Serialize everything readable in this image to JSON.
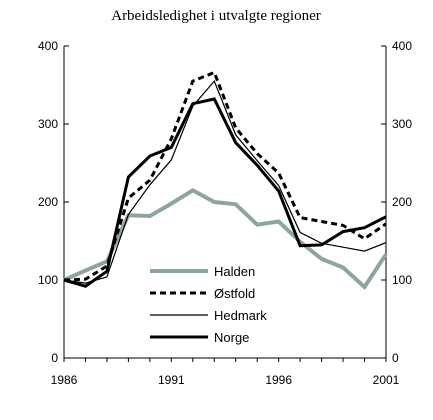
{
  "chart_data": {
    "type": "line",
    "title": "Arbeidsledighet i utvalgte regioner",
    "xlabel": "",
    "ylabel": "",
    "x": [
      1986,
      1987,
      1988,
      1989,
      1990,
      1991,
      1992,
      1993,
      1994,
      1995,
      1996,
      1997,
      1998,
      1999,
      2000,
      2001
    ],
    "xlim": [
      1986,
      2001
    ],
    "ylim": [
      0,
      400
    ],
    "x_ticks": [
      "1986",
      "1991",
      "1996",
      "2001"
    ],
    "y_ticks": [
      "0",
      "100",
      "200",
      "300",
      "400"
    ],
    "y_axis_right": true,
    "grid": false,
    "legend_position": "lower-left (inside plot)",
    "series": [
      {
        "name": "Halden",
        "style": "thick",
        "color": "#8da5a2",
        "values": [
          100,
          112,
          124,
          183,
          182,
          198,
          215,
          200,
          197,
          171,
          175,
          149,
          127,
          116,
          91,
          133
        ]
      },
      {
        "name": "Østfold",
        "style": "dashed",
        "color": "#000000",
        "values": [
          100,
          101,
          118,
          205,
          228,
          281,
          355,
          366,
          295,
          262,
          237,
          180,
          175,
          170,
          153,
          172
        ]
      },
      {
        "name": "Hedmark",
        "style": "thin",
        "color": "#000000",
        "values": [
          100,
          96,
          104,
          184,
          222,
          254,
          323,
          355,
          286,
          253,
          221,
          161,
          147,
          142,
          137,
          148
        ]
      },
      {
        "name": "Norge",
        "style": "bold",
        "color": "#000000",
        "values": [
          100,
          92,
          111,
          232,
          259,
          270,
          326,
          332,
          276,
          247,
          214,
          144,
          145,
          162,
          167,
          181
        ]
      }
    ]
  }
}
